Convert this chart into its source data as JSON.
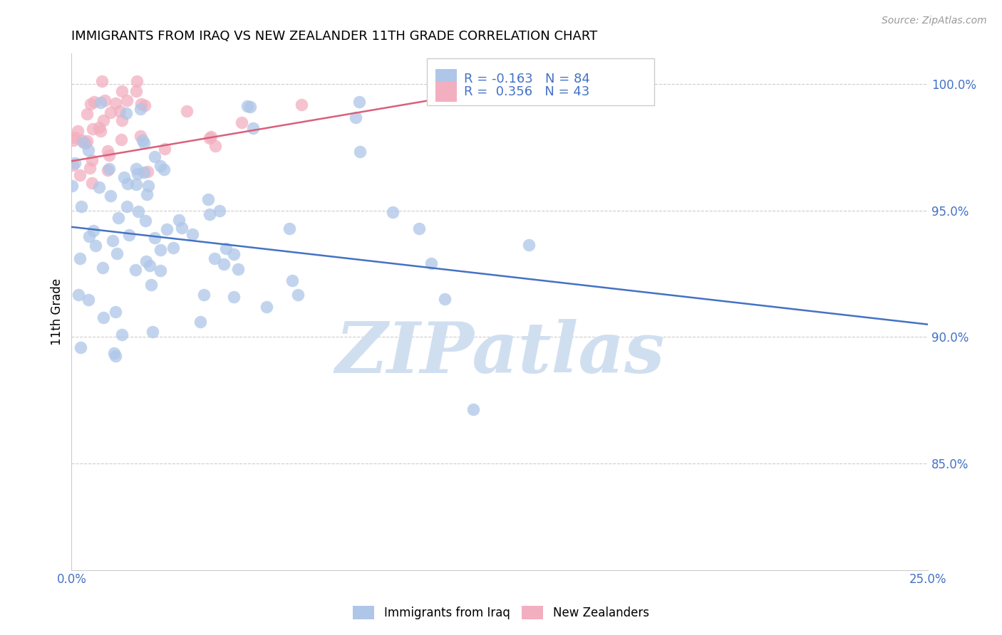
{
  "title": "IMMIGRANTS FROM IRAQ VS NEW ZEALANDER 11TH GRADE CORRELATION CHART",
  "source": "Source: ZipAtlas.com",
  "ylabel": "11th Grade",
  "xlim": [
    0.0,
    0.25
  ],
  "ylim": [
    0.808,
    1.012
  ],
  "yticks": [
    0.85,
    0.9,
    0.95,
    1.0
  ],
  "ytick_labels": [
    "85.0%",
    "90.0%",
    "95.0%",
    "100.0%"
  ],
  "xticks": [
    0.0,
    0.05,
    0.1,
    0.15,
    0.2,
    0.25
  ],
  "iraq_R": "-0.163",
  "iraq_N": "84",
  "nz_R": "0.356",
  "nz_N": "43",
  "iraq_color": "#aec6e8",
  "nz_color": "#f2afc0",
  "iraq_line_color": "#4472c4",
  "nz_line_color": "#d9607a",
  "watermark_text": "ZIPatlas",
  "watermark_color": "#d0dff0",
  "iraq_trend_x": [
    0.0,
    0.25
  ],
  "iraq_trend_y": [
    0.9435,
    0.905
  ],
  "nz_trend_x": [
    0.0,
    0.135
  ],
  "nz_trend_y": [
    0.9695,
    1.0005
  ],
  "grid_color": "#cccccc",
  "tick_label_color": "#4472c4",
  "legend_border_color": "#cccccc"
}
